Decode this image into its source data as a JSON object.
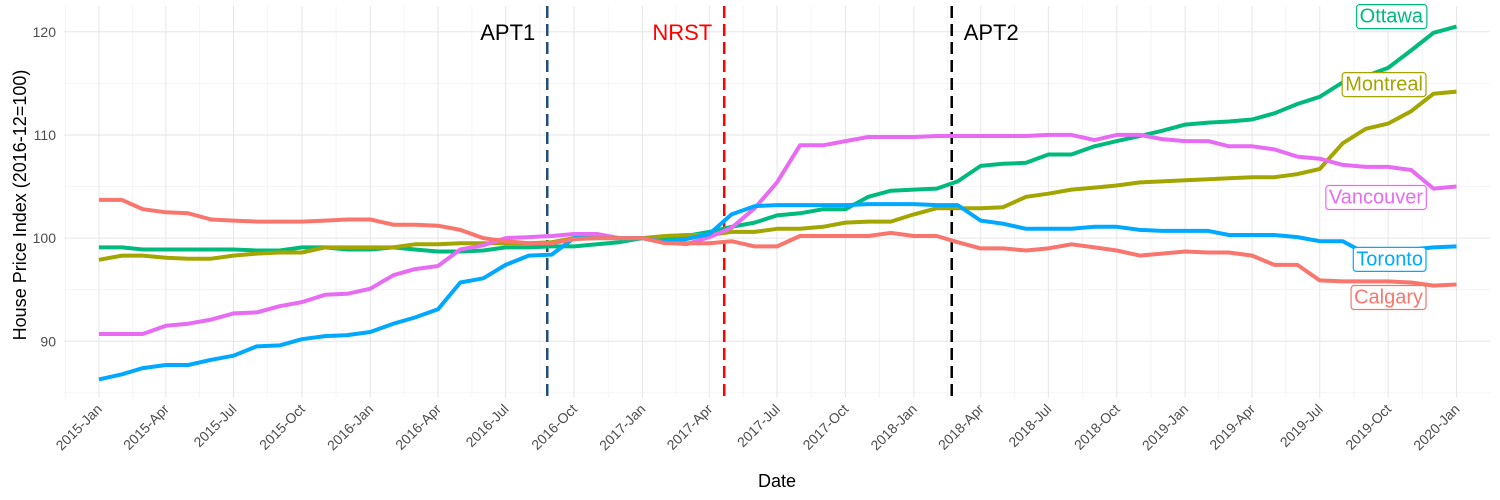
{
  "chart_data": {
    "type": "line",
    "xlabel": "Date",
    "ylabel": "House Price Index (2016-12=100)",
    "ylim": [
      84.5,
      122.5
    ],
    "yticks": [
      90,
      100,
      110,
      120
    ],
    "x_range": [
      "2014-11-15",
      "2020-02-15"
    ],
    "xticks": [
      "2015-Jan",
      "2015-Apr",
      "2015-Jul",
      "2015-Oct",
      "2016-Jan",
      "2016-Apr",
      "2016-Jul",
      "2016-Oct",
      "2017-Jan",
      "2017-Apr",
      "2017-Jul",
      "2017-Oct",
      "2018-Jan",
      "2018-Apr",
      "2018-Jul",
      "2018-Oct",
      "2019-Jan",
      "2019-Apr",
      "2019-Jul",
      "2019-Oct",
      "2020-Jan"
    ],
    "grid": true,
    "legend": "none",
    "annotations": [
      {
        "label": "APT1",
        "date": "2016-08-26",
        "color": "#1f4e79",
        "text_color": "#000000",
        "text_side": "left"
      },
      {
        "label": "NRST",
        "date": "2017-04-21",
        "color": "#ff0000",
        "text_color": "#ff0000",
        "text_side": "left"
      },
      {
        "label": "APT2",
        "date": "2018-02-21",
        "color": "#000000",
        "text_color": "#000000",
        "text_side": "right"
      }
    ],
    "series": [
      {
        "name": "Ottawa",
        "color": "#00ba7d",
        "start": "2015-01",
        "values": [
          99.1,
          99.1,
          98.9,
          98.9,
          98.9,
          98.9,
          98.9,
          98.8,
          98.8,
          99.1,
          99.1,
          98.9,
          98.9,
          99.1,
          98.9,
          98.7,
          98.7,
          98.8,
          99.1,
          99.1,
          99.2,
          99.2,
          99.4,
          99.6,
          100.0,
          100.0,
          100.2,
          100.6,
          101.1,
          101.5,
          102.2,
          102.4,
          102.8,
          102.8,
          104.0,
          104.6,
          104.7,
          104.8,
          105.5,
          107.0,
          107.2,
          107.3,
          108.1,
          108.1,
          108.9,
          109.4,
          109.9,
          110.4,
          111.0,
          111.2,
          111.3,
          111.5,
          112.1,
          113.0,
          113.7,
          115.1,
          115.7,
          116.5,
          118.2,
          119.9,
          120.5
        ]
      },
      {
        "name": "Montreal",
        "color": "#a3a500",
        "start": "2015-01",
        "values": [
          97.9,
          98.3,
          98.3,
          98.1,
          98.0,
          98.0,
          98.3,
          98.5,
          98.6,
          98.6,
          99.1,
          99.1,
          99.1,
          99.1,
          99.4,
          99.4,
          99.5,
          99.5,
          99.5,
          99.5,
          99.6,
          100.0,
          100.0,
          100.0,
          100.0,
          100.2,
          100.3,
          100.3,
          100.6,
          100.6,
          100.9,
          100.9,
          101.1,
          101.5,
          101.6,
          101.6,
          102.3,
          102.9,
          102.9,
          102.9,
          103.0,
          104.0,
          104.3,
          104.7,
          104.9,
          105.1,
          105.4,
          105.5,
          105.6,
          105.7,
          105.8,
          105.9,
          105.9,
          106.2,
          106.7,
          109.2,
          110.6,
          111.1,
          112.3,
          114.0,
          114.2
        ]
      },
      {
        "name": "Vancouver",
        "color": "#e76bf3",
        "start": "2015-01",
        "values": [
          90.7,
          90.7,
          90.7,
          91.5,
          91.7,
          92.1,
          92.7,
          92.8,
          93.4,
          93.8,
          94.5,
          94.6,
          95.1,
          96.4,
          97.0,
          97.3,
          98.9,
          99.3,
          100.0,
          100.1,
          100.2,
          100.4,
          100.4,
          100.0,
          100.0,
          99.6,
          99.4,
          100.1,
          101.0,
          102.9,
          105.4,
          109.0,
          109.0,
          109.4,
          109.8,
          109.8,
          109.8,
          109.9,
          109.9,
          109.9,
          109.9,
          109.9,
          110.0,
          110.0,
          109.5,
          110.0,
          110.0,
          109.6,
          109.4,
          109.4,
          108.9,
          108.9,
          108.6,
          107.9,
          107.7,
          107.1,
          106.9,
          106.9,
          106.6,
          104.8,
          105.0
        ]
      },
      {
        "name": "Toronto",
        "color": "#00a9ff",
        "start": "2015-01",
        "values": [
          86.3,
          86.8,
          87.4,
          87.7,
          87.7,
          88.2,
          88.6,
          89.5,
          89.6,
          90.2,
          90.5,
          90.6,
          90.9,
          91.7,
          92.3,
          93.1,
          95.7,
          96.1,
          97.4,
          98.3,
          98.4,
          100.0,
          100.0,
          100.0,
          100.0,
          99.6,
          99.9,
          100.4,
          102.3,
          103.1,
          103.2,
          103.2,
          103.2,
          103.2,
          103.3,
          103.3,
          103.3,
          103.2,
          103.2,
          101.7,
          101.4,
          100.9,
          100.9,
          100.9,
          101.1,
          101.1,
          100.8,
          100.7,
          100.7,
          100.7,
          100.3,
          100.3,
          100.3,
          100.1,
          99.7,
          99.7,
          98.5,
          98.4,
          98.9,
          99.1,
          99.2
        ]
      },
      {
        "name": "Calgary",
        "color": "#f8766d",
        "start": "2015-01",
        "values": [
          103.7,
          103.7,
          102.8,
          102.5,
          102.4,
          101.8,
          101.7,
          101.6,
          101.6,
          101.6,
          101.7,
          101.8,
          101.8,
          101.3,
          101.3,
          101.2,
          100.8,
          100.0,
          99.7,
          99.5,
          99.5,
          99.9,
          100.0,
          100.0,
          100.0,
          99.5,
          99.5,
          99.5,
          99.7,
          99.2,
          99.2,
          100.2,
          100.2,
          100.2,
          100.2,
          100.5,
          100.2,
          100.2,
          99.6,
          99.0,
          99.0,
          98.8,
          99.0,
          99.4,
          99.1,
          98.8,
          98.3,
          98.5,
          98.7,
          98.6,
          98.6,
          98.3,
          97.4,
          97.4,
          95.9,
          95.8,
          95.8,
          95.8,
          95.7,
          95.4,
          95.5
        ]
      }
    ]
  }
}
